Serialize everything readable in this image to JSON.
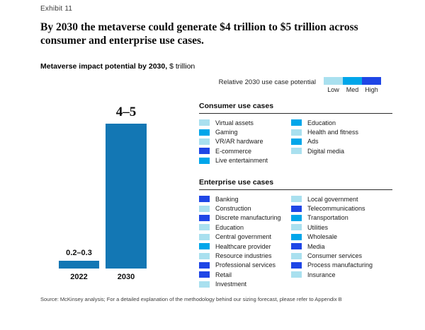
{
  "exhibit_label": "Exhibit 11",
  "title": "By 2030 the metaverse could generate $4 trillion to $5 trillion across consumer and enterprise use cases.",
  "subtitle": {
    "bold": "Metaverse impact potential by 2030,",
    "unit": " $ trillion"
  },
  "legend": {
    "label": "Relative 2030 use case potential",
    "levels": [
      {
        "label": "Low",
        "color": "#A9E0EF"
      },
      {
        "label": "Med",
        "color": "#00A6EA"
      },
      {
        "label": "High",
        "color": "#1F46E6"
      }
    ]
  },
  "chart_data": {
    "type": "bar",
    "title": "Metaverse impact potential by 2030, $ trillion",
    "categories": [
      "2022",
      "2030"
    ],
    "values": [
      0.25,
      4.5
    ],
    "value_labels": [
      "0.2–0.3",
      "4–5"
    ],
    "ylim": [
      0,
      5
    ],
    "ylabel": "$ trillion",
    "bar_color": "#1377B4",
    "grid": false,
    "legend_position": "none"
  },
  "consumer_section": {
    "title": "Consumer use cases",
    "items": [
      {
        "label": "Virtual assets",
        "level": "low"
      },
      {
        "label": "Gaming",
        "level": "med"
      },
      {
        "label": "VR/AR hardware",
        "level": "low"
      },
      {
        "label": "E-commerce",
        "level": "high"
      },
      {
        "label": "Live entertainment",
        "level": "med"
      },
      {
        "label": "Education",
        "level": "med"
      },
      {
        "label": "Health and fitness",
        "level": "low"
      },
      {
        "label": "Ads",
        "level": "med"
      },
      {
        "label": "Digital media",
        "level": "low"
      }
    ]
  },
  "enterprise_section": {
    "title": "Enterprise use cases",
    "items": [
      {
        "label": "Banking",
        "level": "high"
      },
      {
        "label": "Construction",
        "level": "low"
      },
      {
        "label": "Discrete manufacturing",
        "level": "high"
      },
      {
        "label": "Education",
        "level": "low"
      },
      {
        "label": "Central government",
        "level": "low"
      },
      {
        "label": "Healthcare provider",
        "level": "med"
      },
      {
        "label": "Resource industries",
        "level": "low"
      },
      {
        "label": "Professional services",
        "level": "high"
      },
      {
        "label": "Retail",
        "level": "high"
      },
      {
        "label": "Investment",
        "level": "low"
      },
      {
        "label": "Local government",
        "level": "low"
      },
      {
        "label": "Telecommunications",
        "level": "high"
      },
      {
        "label": "Transportation",
        "level": "med"
      },
      {
        "label": "Utilities",
        "level": "low"
      },
      {
        "label": "Wholesale",
        "level": "med"
      },
      {
        "label": "Media",
        "level": "high"
      },
      {
        "label": "Consumer services",
        "level": "low"
      },
      {
        "label": "Process manufacturing",
        "level": "high"
      },
      {
        "label": "Insurance",
        "level": "low"
      }
    ]
  },
  "source": "Source: McKinsey analysis; For a detailed explanation of the methodology behind our sizing forecast, please refer to Appendix B"
}
